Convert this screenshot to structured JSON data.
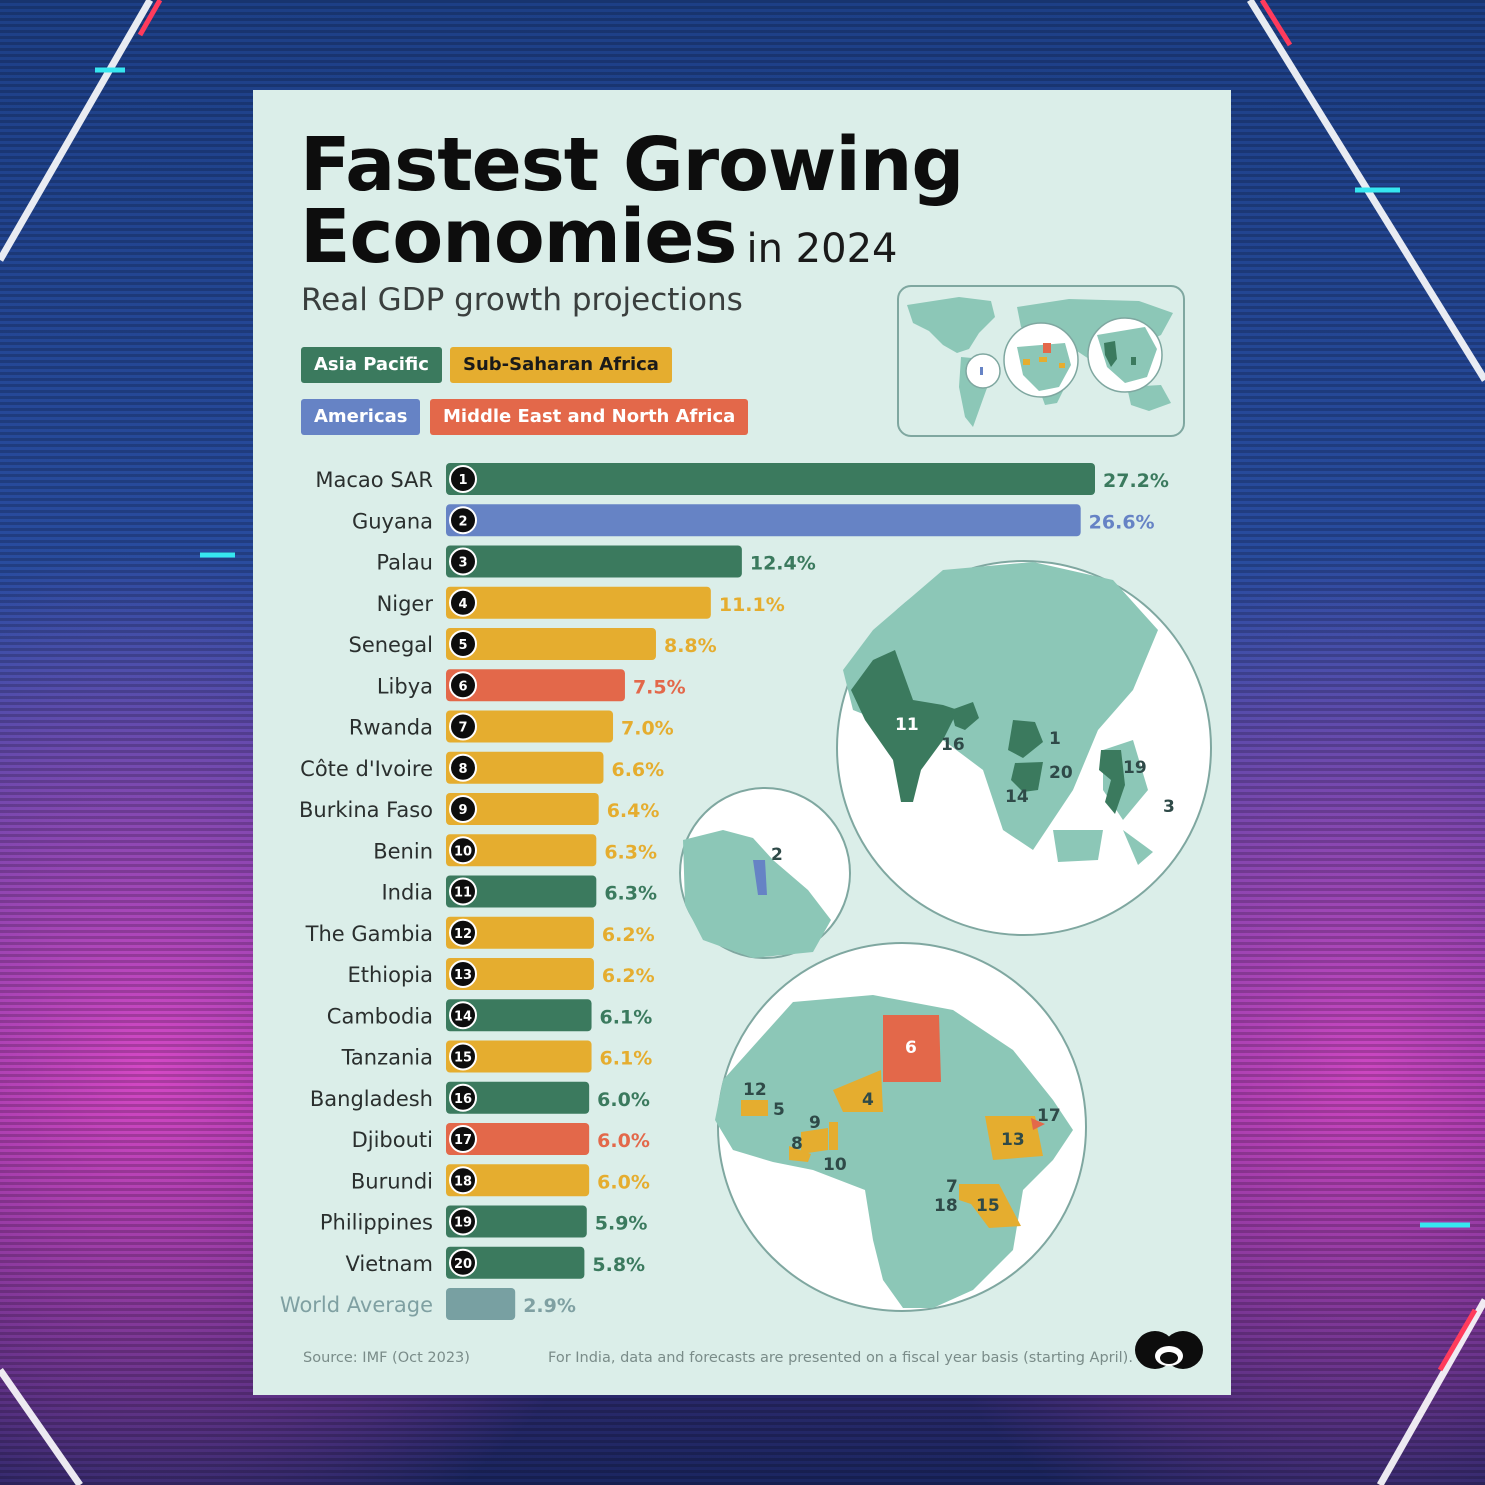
{
  "title_line1": "Fastest Growing",
  "title_line2": "Economies",
  "title_suffix": "in 2024",
  "subtitle": "Real GDP growth projections",
  "legend": [
    {
      "label": "Asia Pacific",
      "color": "#3b7a5e",
      "text_color": "#ffffff"
    },
    {
      "label": "Sub-Saharan Africa",
      "color": "#e5ad2f",
      "text_color": "#1a1a1a"
    },
    {
      "label": "Americas",
      "color": "#6683c5",
      "text_color": "#ffffff"
    },
    {
      "label": "Middle East and North Africa",
      "color": "#e3684a",
      "text_color": "#ffffff"
    }
  ],
  "colors": {
    "asia_pacific": "#3b7a5e",
    "sub_saharan_africa": "#e5ad2f",
    "americas": "#6683c5",
    "mena": "#e3684a",
    "world": "#78a0a2",
    "card_background": "#dbeee9",
    "map_land": "#8cc7b7"
  },
  "chart_data": {
    "type": "bar",
    "orientation": "horizontal",
    "categories": [
      "Macao SAR",
      "Guyana",
      "Palau",
      "Niger",
      "Senegal",
      "Libya",
      "Rwanda",
      "Côte d'Ivoire",
      "Burkina Faso",
      "Benin",
      "India",
      "The Gambia",
      "Ethiopia",
      "Cambodia",
      "Tanzania",
      "Bangladesh",
      "Djibouti",
      "Burundi",
      "Philippines",
      "Vietnam",
      "World Average"
    ],
    "ranks": [
      "1",
      "2",
      "3",
      "4",
      "5",
      "6",
      "7",
      "8",
      "9",
      "10",
      "11",
      "12",
      "13",
      "14",
      "15",
      "16",
      "17",
      "18",
      "19",
      "20",
      ""
    ],
    "values": [
      27.2,
      26.6,
      12.4,
      11.1,
      8.8,
      7.5,
      7.0,
      6.6,
      6.4,
      6.3,
      6.3,
      6.2,
      6.2,
      6.1,
      6.1,
      6.0,
      6.0,
      6.0,
      5.9,
      5.8,
      2.9
    ],
    "labels": [
      "27.2%",
      "26.6%",
      "12.4%",
      "11.1%",
      "8.8%",
      "7.5%",
      "7.0%",
      "6.6%",
      "6.4%",
      "6.3%",
      "6.3%",
      "6.2%",
      "6.2%",
      "6.1%",
      "6.1%",
      "6.0%",
      "6.0%",
      "6.0%",
      "5.9%",
      "5.8%",
      "2.9%"
    ],
    "regions": [
      "asia_pacific",
      "americas",
      "asia_pacific",
      "sub_saharan_africa",
      "sub_saharan_africa",
      "mena",
      "sub_saharan_africa",
      "sub_saharan_africa",
      "sub_saharan_africa",
      "sub_saharan_africa",
      "asia_pacific",
      "sub_saharan_africa",
      "sub_saharan_africa",
      "asia_pacific",
      "sub_saharan_africa",
      "asia_pacific",
      "mena",
      "sub_saharan_africa",
      "asia_pacific",
      "asia_pacific",
      "world"
    ],
    "xlim": [
      0,
      27.2
    ],
    "grid": false,
    "legend_position": "top-left"
  },
  "map_labels": {
    "asia": [
      "11",
      "16",
      "1",
      "20",
      "14",
      "19",
      "3"
    ],
    "americas": [
      "2"
    ],
    "africa": [
      "6",
      "12",
      "5",
      "4",
      "9",
      "8",
      "10",
      "17",
      "13",
      "7",
      "18",
      "15"
    ]
  },
  "source": "Source: IMF (Oct 2023)",
  "footnote": "For India, data and forecasts are presented on a fiscal year basis (starting April)."
}
